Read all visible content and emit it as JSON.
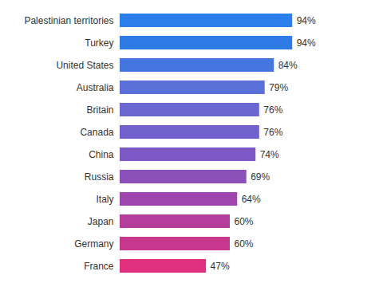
{
  "chart_data": {
    "type": "bar",
    "orientation": "horizontal",
    "categories": [
      "Palestinian territories",
      "Turkey",
      "United States",
      "Australia",
      "Britain",
      "Canada",
      "China",
      "Russia",
      "Italy",
      "Japan",
      "Germany",
      "France"
    ],
    "values": [
      94,
      94,
      84,
      79,
      76,
      76,
      74,
      69,
      64,
      60,
      60,
      47
    ],
    "value_labels": [
      "94%",
      "94%",
      "84%",
      "79%",
      "76%",
      "76%",
      "74%",
      "69%",
      "64%",
      "60%",
      "60%",
      "47%"
    ],
    "colors": [
      "#2b7fea",
      "#2f7be6",
      "#4576e0",
      "#5a6fd8",
      "#6a67d0",
      "#7161cc",
      "#7c59c4",
      "#8b50ba",
      "#9d47ae",
      "#b53e9c",
      "#c8388f",
      "#e0307e"
    ],
    "xlim": [
      0,
      100
    ],
    "data_labels": true,
    "tick_labels": "y"
  }
}
